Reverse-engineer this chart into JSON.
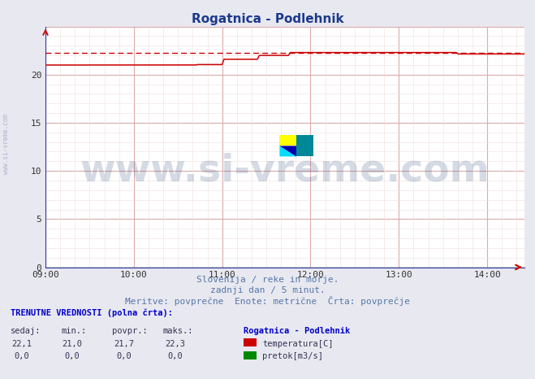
{
  "title": "Rogatnica - Podlehnik",
  "title_color": "#1a3a8c",
  "title_fontsize": 11,
  "bg_color": "#e8e8f0",
  "plot_bg_color": "#ffffff",
  "grid_color": "#ddaaaa",
  "grid_minor_color": "#f0dddd",
  "xlim_hours": [
    9.0,
    14.42
  ],
  "ylim": [
    0,
    25
  ],
  "yticks": [
    0,
    5,
    10,
    15,
    20,
    25
  ],
  "xtick_labels": [
    "09:00",
    "10:00",
    "11:00",
    "12:00",
    "13:00",
    "14:00"
  ],
  "xtick_positions": [
    9,
    10,
    11,
    12,
    13,
    14
  ],
  "xlabel_text1": "Slovenija / reke in morje.",
  "xlabel_text2": "zadnji dan / 5 minut.",
  "xlabel_text3": "Meritve: povprečne  Enote: metrične  Črta: povprečje",
  "xlabel_color": "#5577aa",
  "watermark_text": "www.si-vreme.com",
  "watermark_color": "#1a3a6b",
  "watermark_alpha": 0.18,
  "watermark_fontsize": 34,
  "sidebar_text": "www.si-vreme.com",
  "sidebar_color": "#aaaacc",
  "temp_color": "#cc0000",
  "temp_dashed_color": "#cc0000",
  "flow_color": "#008800",
  "temp_dashed_value": 22.3,
  "bottom_title": "TRENUTNE VREDNOSTI (polna črta):",
  "bottom_color": "#0000cc",
  "bottom_cols": [
    "sedaj:",
    "min.:",
    "povpr.:",
    "maks.:"
  ],
  "bottom_station": "Rogatnica - Podlehnik",
  "bottom_temp_vals": [
    "22,1",
    "21,0",
    "21,7",
    "22,3"
  ],
  "bottom_flow_vals": [
    "0,0",
    "0,0",
    "0,0",
    "0,0"
  ],
  "temp_label": "temperatura[C]",
  "flow_label": "pretok[m3/s]",
  "arrow_color": "#cc0000",
  "t_points": [
    9.0,
    10.7,
    10.72,
    11.0,
    11.02,
    11.4,
    11.42,
    11.75,
    11.77,
    13.65,
    13.67,
    14.42
  ],
  "v_points": [
    21.0,
    21.0,
    21.05,
    21.05,
    21.6,
    21.6,
    22.0,
    22.0,
    22.3,
    22.3,
    22.15,
    22.15
  ]
}
